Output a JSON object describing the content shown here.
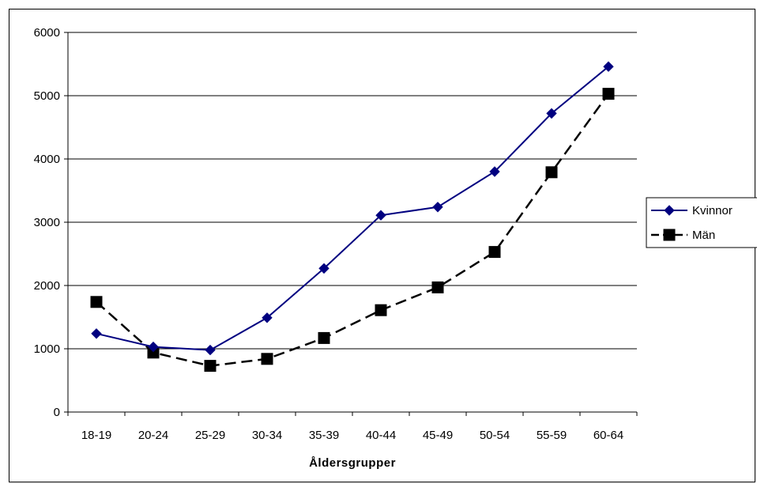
{
  "chart_data": {
    "type": "line",
    "categories": [
      "18-19",
      "20-24",
      "25-29",
      "30-34",
      "35-39",
      "40-44",
      "45-49",
      "50-54",
      "55-59",
      "60-64"
    ],
    "xlabel": "Åldersgrupper",
    "ylabel": "",
    "ylim": [
      0,
      6000
    ],
    "yticks": [
      "0",
      "1000",
      "2000",
      "3000",
      "4000",
      "5000",
      "6000"
    ],
    "grid": "horizontal",
    "legend_position": "right",
    "series": [
      {
        "name": "Kvinnor",
        "color": "#000080",
        "marker": "diamond",
        "line_style": "solid",
        "values": [
          1240,
          1030,
          980,
          1490,
          2270,
          3110,
          3240,
          3800,
          4720,
          5460
        ]
      },
      {
        "name": "Män",
        "color": "#000000",
        "marker": "square",
        "line_style": "dashed",
        "values": [
          1740,
          940,
          730,
          840,
          1170,
          1610,
          1970,
          2530,
          3790,
          5030
        ]
      }
    ]
  }
}
